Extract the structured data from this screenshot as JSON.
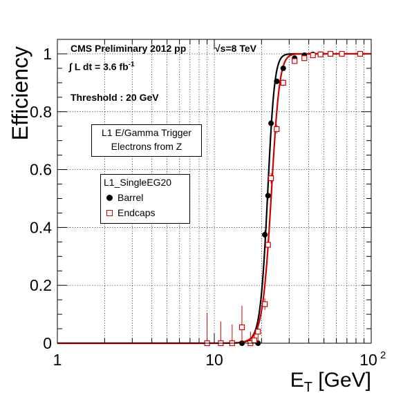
{
  "chart_data": {
    "type": "scatter",
    "title": "",
    "xlabel": "E_T [GeV]",
    "xlabel_main": "E",
    "xlabel_sub": "T",
    "xlabel_unit": "[GeV]",
    "ylabel": "Efficiency",
    "xscale": "log",
    "xlim": [
      1,
      100
    ],
    "ylim": [
      0,
      1.05
    ],
    "grid": true,
    "x_ticks": [
      "1",
      "10",
      "10²"
    ],
    "y_ticks": [
      "0",
      "0.2",
      "0.4",
      "0.6",
      "0.8",
      "1"
    ],
    "legend": {
      "title": "L1_SingleEG20",
      "placement": "center-left"
    },
    "series": [
      {
        "name": "Barrel",
        "color": "#000000",
        "marker": "filled-circle",
        "points": [
          {
            "x": 9,
            "y": 0.0
          },
          {
            "x": 11,
            "y": 0.0
          },
          {
            "x": 13,
            "y": 0.0
          },
          {
            "x": 15,
            "y": 0.0
          },
          {
            "x": 17,
            "y": 0.0
          },
          {
            "x": 19,
            "y": 0.0
          },
          {
            "x": 21,
            "y": 0.375
          },
          {
            "x": 22,
            "y": 0.51
          },
          {
            "x": 23,
            "y": 0.76
          },
          {
            "x": 25,
            "y": 0.905
          },
          {
            "x": 27.5,
            "y": 0.95
          },
          {
            "x": 32.5,
            "y": 0.985
          },
          {
            "x": 37.5,
            "y": 0.995
          },
          {
            "x": 42.5,
            "y": 0.998
          },
          {
            "x": 47.5,
            "y": 0.999
          },
          {
            "x": 55,
            "y": 1.0
          },
          {
            "x": 65,
            "y": 1.0
          },
          {
            "x": 85,
            "y": 1.0
          }
        ],
        "errors": [
          0.01,
          0.01,
          0.01,
          0.01,
          0.01,
          0.01,
          0.015,
          0.015,
          0.012,
          0.008,
          0.008,
          0.005,
          0.003,
          0.002,
          0.002,
          0.001,
          0.001,
          0.001
        ]
      },
      {
        "name": "Endcaps",
        "color": "#d00000",
        "marker": "open-square",
        "points": [
          {
            "x": 9,
            "y": 0.0
          },
          {
            "x": 11,
            "y": 0.0
          },
          {
            "x": 13,
            "y": 0.0
          },
          {
            "x": 15,
            "y": 0.055
          },
          {
            "x": 17,
            "y": 0.0
          },
          {
            "x": 18,
            "y": 0.01
          },
          {
            "x": 19,
            "y": 0.04
          },
          {
            "x": 21,
            "y": 0.135
          },
          {
            "x": 22,
            "y": 0.34
          },
          {
            "x": 23,
            "y": 0.57
          },
          {
            "x": 25,
            "y": 0.74
          },
          {
            "x": 27.5,
            "y": 0.9
          },
          {
            "x": 32.5,
            "y": 0.975
          },
          {
            "x": 37.5,
            "y": 0.985
          },
          {
            "x": 42.5,
            "y": 0.995
          },
          {
            "x": 47.5,
            "y": 0.998
          },
          {
            "x": 55,
            "y": 1.0
          },
          {
            "x": 65,
            "y": 1.0
          },
          {
            "x": 85,
            "y": 1.0
          }
        ],
        "errors": [
          0.105,
          0.075,
          0.065,
          0.075,
          0.04,
          0.03,
          0.035,
          0.02,
          0.02,
          0.018,
          0.015,
          0.012,
          0.008,
          0.005,
          0.004,
          0.003,
          0.002,
          0.002,
          0.001
        ]
      }
    ],
    "fits": [
      {
        "color": "#000000",
        "x50": 21.8,
        "width": 1.15
      },
      {
        "color": "#d00000",
        "x50": 23.0,
        "width": 1.45
      }
    ],
    "annotations": {
      "cms_label": "CMS Preliminary 2012 pp",
      "energy_label": "√s=8 TeV",
      "lumi_prefix": "∫ L dt = 3.6 fb",
      "lumi_exp": "-1",
      "threshold": "Threshold : 20 GeV",
      "trigger_line1": "L1 E/Gamma Trigger",
      "trigger_line2": "Electrons from Z"
    }
  }
}
